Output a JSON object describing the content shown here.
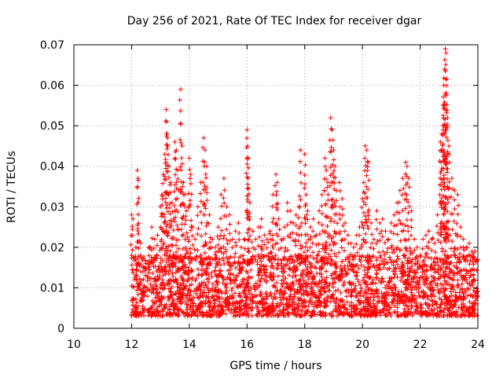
{
  "chart_data": {
    "type": "scatter",
    "title": "Day 256 of 2021, Rate Of TEC Index for receiver dgar",
    "xlabel": "GPS time / hours",
    "ylabel": "ROTI / TECUs",
    "xlim": [
      10,
      24
    ],
    "ylim": [
      0,
      0.07
    ],
    "x_ticks": [
      "10",
      "12",
      "14",
      "16",
      "18",
      "20",
      "22",
      "24"
    ],
    "y_ticks": [
      "0",
      "0.01",
      "0.02",
      "0.03",
      "0.04",
      "0.05",
      "0.06",
      "0.07"
    ],
    "grid": true,
    "marker": "+",
    "color": "#ff0000",
    "series": [
      {
        "x_range": [
          12.0,
          24.0
        ],
        "baseline_range": [
          0.003,
          0.018
        ],
        "points": [
          [
            12.0,
            0.018
          ],
          [
            12.0,
            0.028
          ],
          [
            12.05,
            0.027
          ],
          [
            12.1,
            0.012
          ],
          [
            12.15,
            0.02
          ],
          [
            12.2,
            0.039
          ],
          [
            12.22,
            0.037
          ],
          [
            12.3,
            0.018
          ],
          [
            12.4,
            0.015
          ],
          [
            12.5,
            0.016
          ],
          [
            12.6,
            0.02
          ],
          [
            12.7,
            0.025
          ],
          [
            12.8,
            0.022
          ],
          [
            12.9,
            0.023
          ],
          [
            13.0,
            0.03
          ],
          [
            13.05,
            0.033
          ],
          [
            13.1,
            0.038
          ],
          [
            13.15,
            0.043
          ],
          [
            13.2,
            0.054
          ],
          [
            13.22,
            0.051
          ],
          [
            13.25,
            0.047
          ],
          [
            13.3,
            0.04
          ],
          [
            13.35,
            0.036
          ],
          [
            13.4,
            0.031
          ],
          [
            13.45,
            0.027
          ],
          [
            13.5,
            0.046
          ],
          [
            13.55,
            0.044
          ],
          [
            13.6,
            0.039
          ],
          [
            13.7,
            0.059
          ],
          [
            13.75,
            0.045
          ],
          [
            13.8,
            0.036
          ],
          [
            13.85,
            0.033
          ],
          [
            13.9,
            0.029
          ],
          [
            14.0,
            0.042
          ],
          [
            14.05,
            0.038
          ],
          [
            14.1,
            0.025
          ],
          [
            14.2,
            0.022
          ],
          [
            14.3,
            0.03
          ],
          [
            14.4,
            0.036
          ],
          [
            14.5,
            0.047
          ],
          [
            14.55,
            0.044
          ],
          [
            14.6,
            0.04
          ],
          [
            14.7,
            0.028
          ],
          [
            14.8,
            0.022
          ],
          [
            14.9,
            0.02
          ],
          [
            15.0,
            0.025
          ],
          [
            15.1,
            0.033
          ],
          [
            15.2,
            0.037
          ],
          [
            15.3,
            0.03
          ],
          [
            15.4,
            0.028
          ],
          [
            15.5,
            0.022
          ],
          [
            15.6,
            0.024
          ],
          [
            15.7,
            0.026
          ],
          [
            15.8,
            0.02
          ],
          [
            15.9,
            0.022
          ],
          [
            16.0,
            0.049
          ],
          [
            16.02,
            0.045
          ],
          [
            16.05,
            0.042
          ],
          [
            16.1,
            0.031
          ],
          [
            16.2,
            0.024
          ],
          [
            16.3,
            0.022
          ],
          [
            16.4,
            0.025
          ],
          [
            16.5,
            0.027
          ],
          [
            16.6,
            0.023
          ],
          [
            16.7,
            0.022
          ],
          [
            16.8,
            0.024
          ],
          [
            16.9,
            0.033
          ],
          [
            17.0,
            0.038
          ],
          [
            17.05,
            0.036
          ],
          [
            17.1,
            0.027
          ],
          [
            17.2,
            0.022
          ],
          [
            17.3,
            0.025
          ],
          [
            17.4,
            0.031
          ],
          [
            17.5,
            0.029
          ],
          [
            17.6,
            0.026
          ],
          [
            17.7,
            0.028
          ],
          [
            17.8,
            0.03
          ],
          [
            17.85,
            0.044
          ],
          [
            17.9,
            0.026
          ],
          [
            18.0,
            0.043
          ],
          [
            18.05,
            0.033
          ],
          [
            18.1,
            0.029
          ],
          [
            18.2,
            0.025
          ],
          [
            18.3,
            0.027
          ],
          [
            18.4,
            0.023
          ],
          [
            18.5,
            0.029
          ],
          [
            18.6,
            0.033
          ],
          [
            18.7,
            0.042
          ],
          [
            18.75,
            0.039
          ],
          [
            18.8,
            0.036
          ],
          [
            18.9,
            0.052
          ],
          [
            18.95,
            0.049
          ],
          [
            19.0,
            0.044
          ],
          [
            19.05,
            0.04
          ],
          [
            19.1,
            0.034
          ],
          [
            19.2,
            0.036
          ],
          [
            19.3,
            0.032
          ],
          [
            19.4,
            0.026
          ],
          [
            19.5,
            0.023
          ],
          [
            19.6,
            0.021
          ],
          [
            19.7,
            0.02
          ],
          [
            19.8,
            0.023
          ],
          [
            19.9,
            0.025
          ],
          [
            20.0,
            0.032
          ],
          [
            20.05,
            0.036
          ],
          [
            20.1,
            0.045
          ],
          [
            20.15,
            0.044
          ],
          [
            20.2,
            0.041
          ],
          [
            20.3,
            0.026
          ],
          [
            20.4,
            0.022
          ],
          [
            20.5,
            0.029
          ],
          [
            20.6,
            0.026
          ],
          [
            20.7,
            0.027
          ],
          [
            20.8,
            0.024
          ],
          [
            20.9,
            0.022
          ],
          [
            21.0,
            0.026
          ],
          [
            21.1,
            0.028
          ],
          [
            21.2,
            0.031
          ],
          [
            21.3,
            0.034
          ],
          [
            21.4,
            0.037
          ],
          [
            21.5,
            0.041
          ],
          [
            21.55,
            0.04
          ],
          [
            21.6,
            0.037
          ],
          [
            21.7,
            0.029
          ],
          [
            21.8,
            0.022
          ],
          [
            21.9,
            0.02
          ],
          [
            22.0,
            0.018
          ],
          [
            22.1,
            0.022
          ],
          [
            22.2,
            0.023
          ],
          [
            22.3,
            0.024
          ],
          [
            22.4,
            0.022
          ],
          [
            22.5,
            0.021
          ],
          [
            22.6,
            0.028
          ],
          [
            22.7,
            0.046
          ],
          [
            22.72,
            0.041
          ],
          [
            22.75,
            0.048
          ],
          [
            22.8,
            0.055
          ],
          [
            22.82,
            0.06
          ],
          [
            22.85,
            0.064
          ],
          [
            22.87,
            0.069
          ],
          [
            22.9,
            0.068
          ],
          [
            22.92,
            0.058
          ],
          [
            22.95,
            0.052
          ],
          [
            23.0,
            0.045
          ],
          [
            23.1,
            0.037
          ],
          [
            23.2,
            0.034
          ],
          [
            23.3,
            0.033
          ],
          [
            23.4,
            0.025
          ],
          [
            23.5,
            0.022
          ],
          [
            23.6,
            0.02
          ],
          [
            23.7,
            0.021
          ],
          [
            23.8,
            0.019
          ],
          [
            23.9,
            0.019
          ],
          [
            24.0,
            0.017
          ]
        ]
      }
    ]
  }
}
